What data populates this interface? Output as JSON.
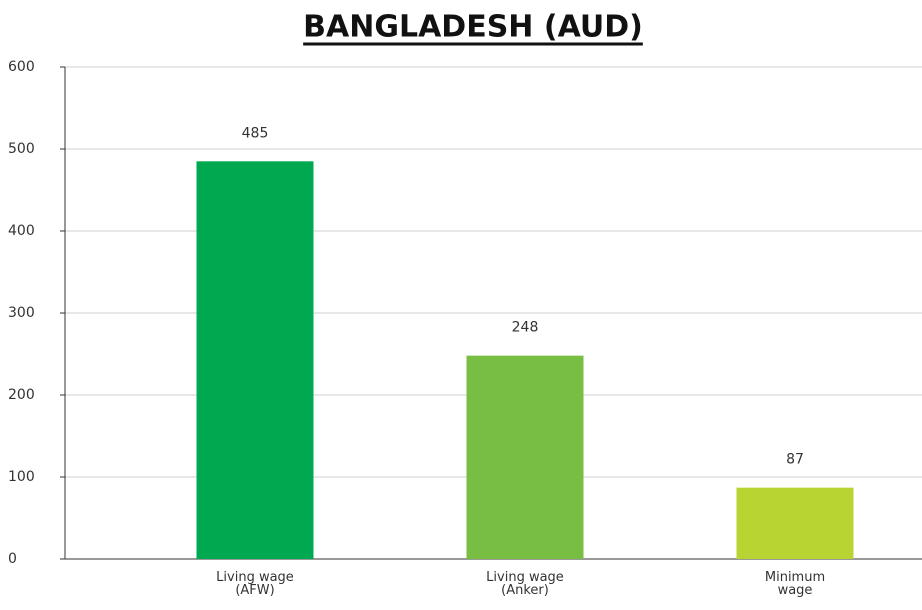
{
  "chart_data": {
    "type": "bar",
    "title": "BANGLADESH (AUD)",
    "categories": [
      "Living wage (AFW)",
      "Living wage (Anker)",
      "Minimum wage"
    ],
    "values": [
      485,
      248,
      87
    ],
    "colors": [
      "#00a94f",
      "#78be43",
      "#b8d432"
    ],
    "ylim": [
      0,
      600
    ],
    "yticks": [
      0,
      100,
      200,
      300,
      400,
      500,
      600
    ],
    "grid": true
  }
}
